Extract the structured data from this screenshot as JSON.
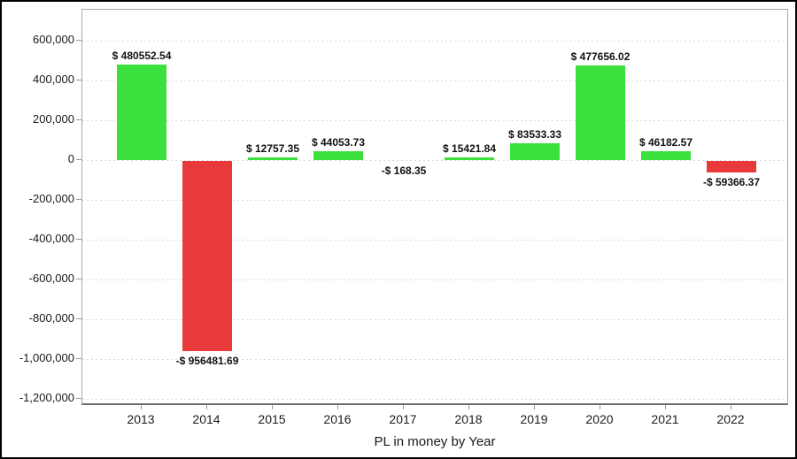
{
  "chart_data": {
    "type": "bar",
    "title": "PL in money by Year",
    "categories": [
      "2013",
      "2014",
      "2015",
      "2016",
      "2017",
      "2018",
      "2019",
      "2020",
      "2021",
      "2022"
    ],
    "values": [
      480552.54,
      -956481.69,
      12757.35,
      44053.73,
      -168.35,
      15421.84,
      83533.33,
      477656.02,
      46182.57,
      -59366.37
    ],
    "bar_labels": [
      "$ 480552.54",
      "-$ 956481.69",
      "$ 12757.35",
      "$ 44053.73",
      "-$ 168.35",
      "$ 15421.84",
      "$ 83533.33",
      "$ 477656.02",
      "$ 46182.57",
      "-$ 59366.37"
    ],
    "y_tick_values": [
      600000,
      400000,
      200000,
      0,
      -200000,
      -400000,
      -600000,
      -800000,
      -1000000,
      -1200000
    ],
    "y_tick_labels": [
      "600,000",
      "400,000",
      "200,000",
      "0",
      "-200,000",
      "-400,000",
      "-600,000",
      "-800,000",
      "-1,000,000",
      "-1,200,000"
    ],
    "ylim": [
      -1235000,
      756000
    ],
    "xlabel": "",
    "ylabel": "",
    "grid": "horizontal-dotted",
    "legend": "none",
    "colors": {
      "positive": "#3ce03c",
      "negative": "#e8393b",
      "grid": "#d9d9d9",
      "plot_border": "#a9a9a9",
      "axis_line": "#6e6e6e",
      "tick": "#999999",
      "text": "#111111"
    }
  }
}
